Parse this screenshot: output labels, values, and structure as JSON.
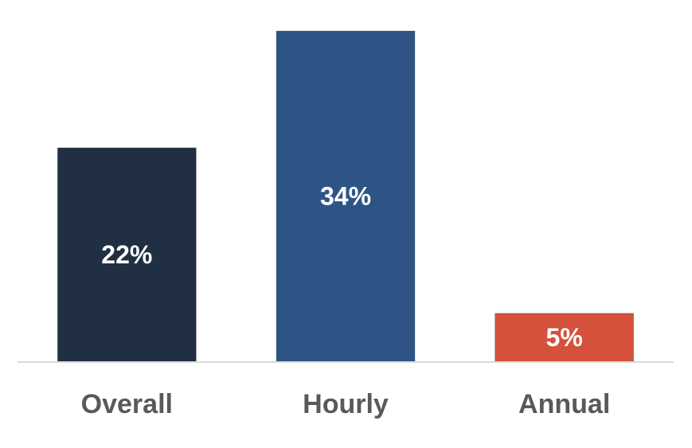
{
  "chart_data": {
    "type": "bar",
    "categories": [
      "Overall",
      "Hourly",
      "Annual"
    ],
    "values": [
      22,
      34,
      5
    ],
    "value_labels": [
      "22%",
      "34%",
      "5%"
    ],
    "colors": [
      "#212f43",
      "#2e5485",
      "#d4513c"
    ]
  }
}
